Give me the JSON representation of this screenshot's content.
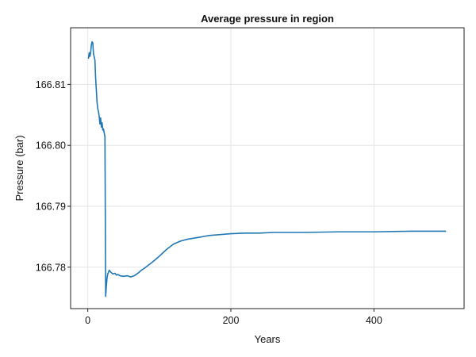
{
  "chart_data": {
    "type": "line",
    "title": "Average pressure in region",
    "xlabel": "Years",
    "ylabel": "Pressure (bar)",
    "xlim": [
      -24,
      526
    ],
    "ylim": [
      166.7732,
      166.8193
    ],
    "x_ticks": [
      0,
      200,
      400
    ],
    "y_ticks": [
      166.78,
      166.79,
      166.8,
      166.81
    ],
    "x_tick_labels": [
      "0",
      "200",
      "400"
    ],
    "y_tick_labels": [
      "166.78",
      "166.79",
      "166.80",
      "166.81"
    ],
    "grid": true,
    "series_color": "#1f77b4",
    "series": [
      {
        "x": [
          1,
          2,
          3,
          4,
          5,
          6,
          7,
          8,
          9,
          10,
          11,
          12,
          13,
          14,
          15,
          16,
          17,
          18,
          19,
          20,
          21,
          22,
          23,
          24,
          25,
          26,
          27,
          28,
          29,
          30,
          32,
          35,
          38,
          40,
          42,
          45,
          50,
          55,
          60,
          65,
          70,
          75,
          80,
          90,
          100,
          110,
          120,
          130,
          140,
          150,
          160,
          170,
          180,
          190,
          200,
          220,
          240,
          260,
          280,
          300,
          350,
          400,
          450,
          500
        ],
        "y": [
          166.8143,
          166.8152,
          166.8146,
          166.8152,
          166.8165,
          166.817,
          166.8168,
          166.815,
          166.8145,
          166.814,
          166.811,
          166.809,
          166.807,
          166.806,
          166.8055,
          166.8047,
          166.8035,
          166.8045,
          166.803,
          166.8037,
          166.8025,
          166.8027,
          166.802,
          166.8014,
          166.7752,
          166.777,
          166.7783,
          166.7789,
          166.7792,
          166.7795,
          166.7792,
          166.7789,
          166.779,
          166.7787,
          166.7788,
          166.7786,
          166.7785,
          166.7786,
          166.7784,
          166.7786,
          166.779,
          166.7795,
          166.7799,
          166.7808,
          166.7818,
          166.7829,
          166.7838,
          166.7843,
          166.7846,
          166.7848,
          166.785,
          166.7852,
          166.7853,
          166.7854,
          166.7855,
          166.7856,
          166.7856,
          166.7857,
          166.7857,
          166.7857,
          166.7858,
          166.7858,
          166.7859,
          166.7859
        ]
      }
    ]
  }
}
